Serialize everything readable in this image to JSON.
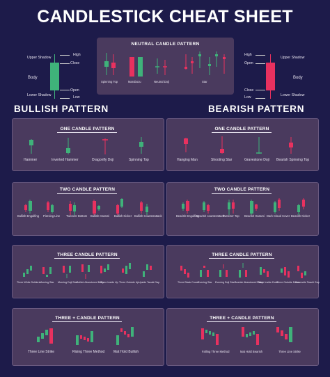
{
  "title": "CANDLESTICK CHEAT SHEET",
  "colors": {
    "background": "#1d1b4a",
    "panel": "#4a3a5e",
    "bullish": "#3fb27a",
    "bearish": "#e8315f"
  },
  "bull_anatomy": {
    "upper_shadow": "Upper Shadow",
    "high": "High",
    "close": "Close",
    "body": "Body",
    "open": "Open",
    "low": "Low",
    "lower_shadow": "Lower Shadow"
  },
  "bear_anatomy": {
    "high": "High",
    "upper_shadow": "Upper Shadow",
    "open": "Open",
    "body": "Body",
    "close": "Close",
    "low": "Low",
    "lower_shadow": "Lower Shadow"
  },
  "neutral": {
    "title": "NEUTRAL CANDLE PATTERN",
    "labels": [
      "Spinning Top",
      "Marubozu",
      "Neutral Doji",
      "Star"
    ]
  },
  "bullish": {
    "heading": "BULLISH PATTERN",
    "one": {
      "title": "ONE CANDLE PATTERN",
      "labels": [
        "Hammer",
        "Inverted Hammer",
        "Dragonfly Doji",
        "Spinning Top"
      ]
    },
    "two": {
      "title": "TWO CANDLE PATTERN",
      "labels": [
        "Bullish Engulfing",
        "Piercing Line",
        "Tweezer Bottom",
        "Bullish Harami",
        "Bullish Kicker",
        "Bullish Counterattack"
      ]
    },
    "three": {
      "title": "THREE  CANDLE PATTERN",
      "labels": [
        "Three White Soldiers",
        "Morning Star",
        "Morning Doji Star",
        "Bullish Abandoned Baby",
        "Three Inside Up",
        "Three Outside Up",
        "Upside Tasuki Gap"
      ]
    },
    "threeplus": {
      "title": "THREE + CANDLE PATTERN",
      "labels": [
        "Three Line Strike",
        "Rising Three Method",
        "Mat Hold Bullish"
      ]
    }
  },
  "bearish": {
    "heading": "BEARISH PATTERN",
    "one": {
      "title": "ONE CANDLE PATTERN",
      "labels": [
        "Hanging Man",
        "Shooting Star",
        "Gravestone Doji",
        "Bearish Spinning Top"
      ]
    },
    "two": {
      "title": "TWO CANDLE PATTERN",
      "labels": [
        "Bearish Engulfing",
        "Bearish counterattack",
        "Tweezer Top",
        "Bearish Harami",
        "Dark Cloud Cover",
        "Bearish Kicker"
      ]
    },
    "three": {
      "title": "THREE  CANDLE PATTERN",
      "labels": [
        "Three Black Crows",
        "Evening Star",
        "Evening Doji Star",
        "Bearish Abandoned Baby",
        "Three Inside Down",
        "Three Outside Down",
        "Downside Tasuki Gap"
      ]
    },
    "threeplus": {
      "title": "THREE + CANDLE PATTERN",
      "labels": [
        "Falling Three Method",
        "Mat Hold Bearish",
        "Three Line Strike"
      ]
    }
  }
}
